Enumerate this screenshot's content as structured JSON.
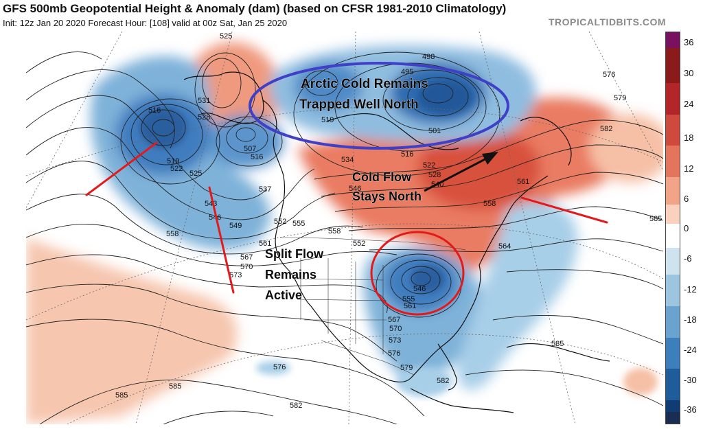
{
  "header": {
    "title": "GFS 500mb Geopotential Height & Anomaly (dam) (based on CFSR 1981-2010 Climatology)",
    "subtitle": "Init: 12z Jan 20 2020   Forecast Hour: [108]   valid at 00z Sat, Jan 25 2020",
    "credit": "TROPICALTIDBITS.COM"
  },
  "annotations": {
    "arctic": [
      "Arctic Cold Remains",
      "Trapped Well North"
    ],
    "cold_flow": [
      "Cold Flow",
      "Stays North"
    ],
    "split_flow": [
      "Split Flow",
      "Remains",
      "Active"
    ]
  },
  "contour_labels": [
    "525",
    "531",
    "528",
    "516",
    "519",
    "522",
    "525",
    "507",
    "516",
    "537",
    "549",
    "558",
    "543",
    "546",
    "552",
    "555",
    "561",
    "567",
    "570",
    "573",
    "495",
    "498",
    "501",
    "519",
    "534",
    "546",
    "516",
    "522",
    "528",
    "540",
    "552",
    "558",
    "558",
    "561",
    "564",
    "576",
    "579",
    "582",
    "585",
    "546",
    "555",
    "561",
    "567",
    "570",
    "573",
    "576",
    "579",
    "582",
    "585",
    "576",
    "582",
    "585",
    "585"
  ],
  "colorbar": {
    "labels": [
      "36",
      "30",
      "24",
      "18",
      "12",
      "6",
      "0",
      "-6",
      "-12",
      "-18",
      "-24",
      "-30",
      "-36"
    ],
    "colors": [
      "#7a1060",
      "#8b1a1a",
      "#b2262a",
      "#cf4a3c",
      "#e2755c",
      "#f1a487",
      "#f9d1bd",
      "#ffffff",
      "#cfe3ef",
      "#9dc5e0",
      "#6aa3cf",
      "#3d7fbc",
      "#1f5c9c",
      "#0f3d73",
      "#1a2d52"
    ]
  },
  "colors": {
    "warm_anomaly": "#f5b89e",
    "strong_warm": "#d9533f",
    "cold_anomaly": "#9ec8e3",
    "strong_cold": "#2f6cb0",
    "arctic_ellipse": "#3f3fc8",
    "trough_circle": "#e31a1c",
    "axis_lines": "#e31a1c",
    "arrow": "#111111"
  }
}
